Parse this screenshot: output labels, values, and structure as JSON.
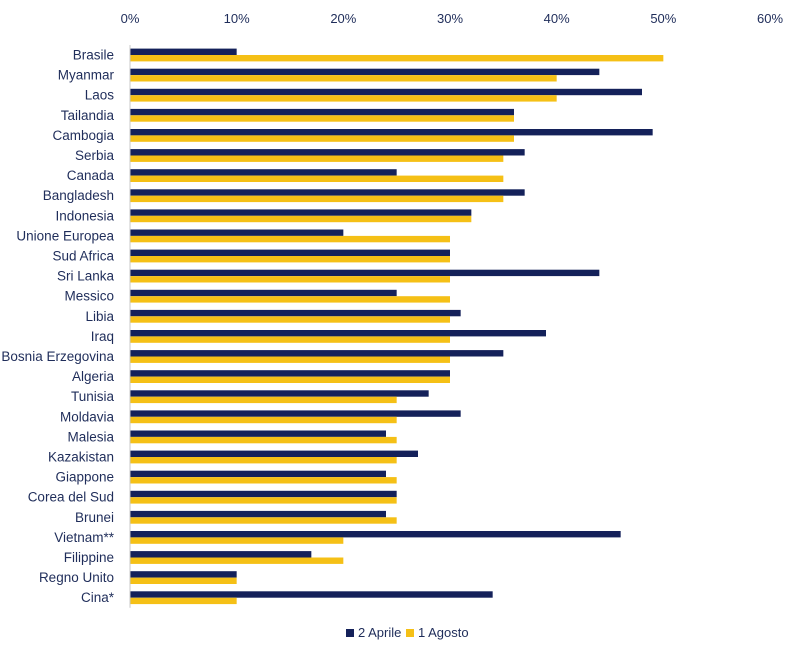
{
  "chart_data": {
    "type": "bar",
    "orientation": "horizontal",
    "title": "",
    "xlabel": "",
    "ylabel": "",
    "xlim": [
      0,
      60
    ],
    "x_ticks": [
      "0%",
      "10%",
      "20%",
      "30%",
      "40%",
      "50%",
      "60%"
    ],
    "x_tick_values": [
      0,
      10,
      20,
      30,
      40,
      50,
      60
    ],
    "axis_position": "top",
    "grid": false,
    "legend_position": "bottom",
    "categories": [
      "Brasile",
      "Myanmar",
      "Laos",
      "Tailandia",
      "Cambogia",
      "Serbia",
      "Canada",
      "Bangladesh",
      "Indonesia",
      "Unione Europea",
      "Sud Africa",
      "Sri Lanka",
      "Messico",
      "Libia",
      "Iraq",
      "Bosnia Erzegovina",
      "Algeria",
      "Tunisia",
      "Moldavia",
      "Malesia",
      "Kazakistan",
      "Giappone",
      "Corea del Sud",
      "Brunei",
      "Vietnam**",
      "Filippine",
      "Regno Unito",
      "Cina*"
    ],
    "series": [
      {
        "name": "2 Aprile",
        "color": "#14215a",
        "values": [
          10,
          44,
          48,
          36,
          49,
          37,
          25,
          37,
          32,
          20,
          30,
          44,
          25,
          31,
          39,
          35,
          30,
          28,
          31,
          24,
          27,
          24,
          25,
          24,
          46,
          17,
          10,
          34
        ]
      },
      {
        "name": "1 Agosto",
        "color": "#f5c016",
        "values": [
          50,
          40,
          40,
          36,
          36,
          35,
          35,
          35,
          32,
          30,
          30,
          30,
          30,
          30,
          30,
          30,
          30,
          25,
          25,
          25,
          25,
          25,
          25,
          25,
          20,
          20,
          10,
          10
        ]
      }
    ]
  }
}
